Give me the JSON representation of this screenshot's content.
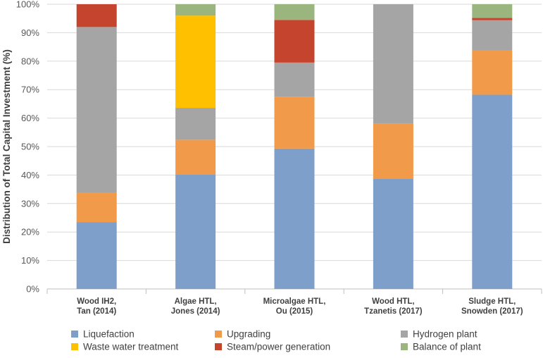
{
  "chart_data": {
    "type": "bar",
    "stacked": true,
    "title": "",
    "xlabel": "",
    "ylabel": "Distribution of Total Capital Investment (%)",
    "ylim": [
      0,
      100
    ],
    "yticks": [
      "0%",
      "10%",
      "20%",
      "30%",
      "40%",
      "50%",
      "60%",
      "70%",
      "80%",
      "90%",
      "100%"
    ],
    "grid": true,
    "legend_position": "bottom",
    "categories": [
      [
        "Wood IH2,",
        "Tan (2014)"
      ],
      [
        "Algae HTL,",
        "Jones (2014)"
      ],
      [
        "Microalgae HTL,",
        "Ou (2015)"
      ],
      [
        "Wood HTL,",
        "Tzanetis (2017)"
      ],
      [
        "Sludge HTL,",
        "Snowden (2017)"
      ]
    ],
    "series": [
      {
        "name": "Liquefaction",
        "color": "#7F9FCB",
        "values": [
          23.5,
          40.2,
          49.3,
          38.8,
          68.2
        ]
      },
      {
        "name": "Upgrading",
        "color": "#F09A4A",
        "values": [
          10.3,
          12.2,
          18.2,
          19.2,
          15.6
        ]
      },
      {
        "name": "Hydrogen plant",
        "color": "#A5A5A5",
        "values": [
          58.2,
          11.2,
          12.0,
          42.0,
          10.6
        ]
      },
      {
        "name": "Waste water treatment",
        "color": "#FFC000",
        "values": [
          0,
          32.4,
          0,
          0,
          0
        ]
      },
      {
        "name": "Steam/power generation",
        "color": "#C5442E",
        "values": [
          8.0,
          0,
          15.0,
          0,
          0.8
        ]
      },
      {
        "name": "Balance of plant",
        "color": "#9BB57F",
        "values": [
          0,
          4.0,
          5.5,
          0,
          4.8
        ]
      }
    ]
  }
}
